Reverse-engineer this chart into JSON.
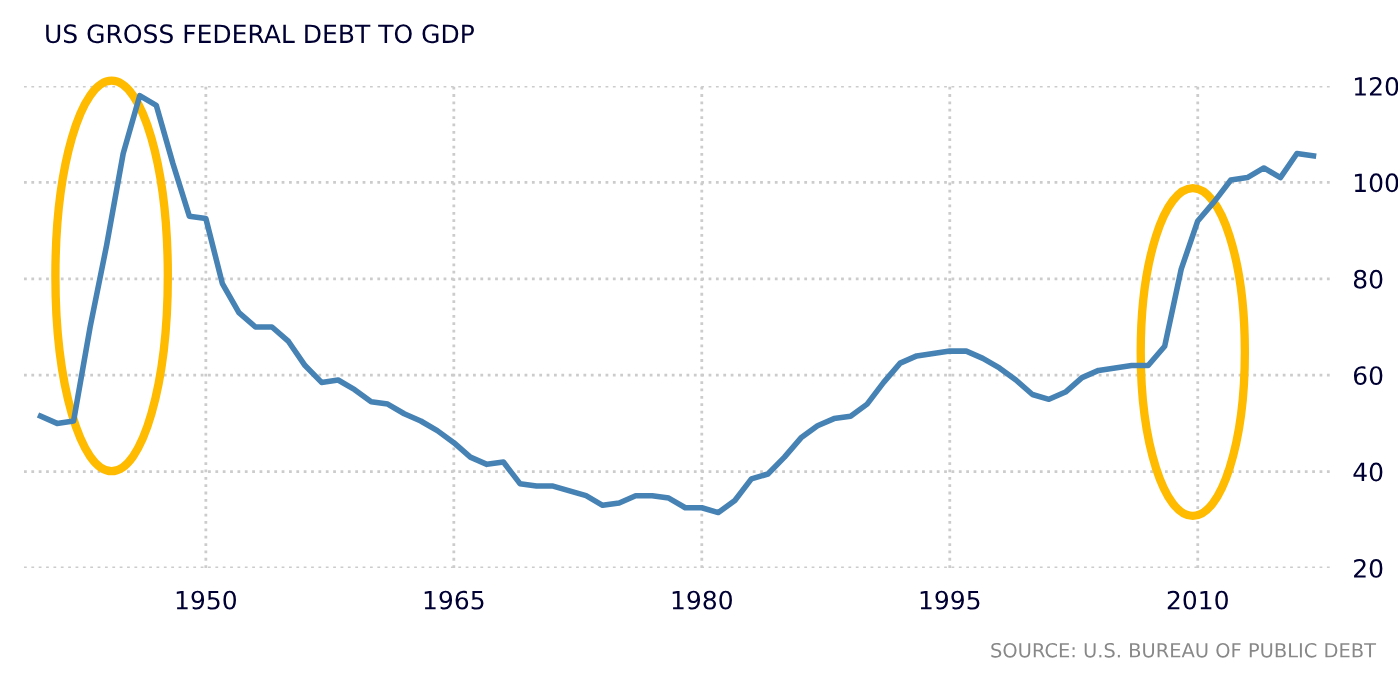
{
  "chart_data": {
    "type": "line",
    "title": "US GROSS FEDERAL DEBT TO GDP",
    "annotations": [
      "SOURCE: U.S. BUREAU OF PUBLIC DEBT"
    ],
    "x": [
      1940,
      1941,
      1942,
      1943,
      1944,
      1945,
      1946,
      1947,
      1948,
      1949,
      1950,
      1951,
      1952,
      1953,
      1954,
      1955,
      1956,
      1957,
      1958,
      1959,
      1960,
      1961,
      1962,
      1963,
      1964,
      1965,
      1966,
      1967,
      1968,
      1969,
      1970,
      1971,
      1972,
      1973,
      1974,
      1975,
      1976,
      1977,
      1978,
      1979,
      1980,
      1981,
      1982,
      1983,
      1984,
      1985,
      1986,
      1987,
      1988,
      1989,
      1990,
      1991,
      1992,
      1993,
      1994,
      1995,
      1996,
      1997,
      1998,
      1999,
      2000,
      2001,
      2002,
      2003,
      2004,
      2005,
      2006,
      2007,
      2008,
      2009,
      2010,
      2011,
      2012,
      2013,
      2014,
      2015,
      2016,
      2017
    ],
    "series": [
      {
        "color": "#4682b4",
        "values": [
          51.5,
          50,
          50.5,
          70,
          87,
          106,
          118,
          116,
          104,
          93,
          92.5,
          79,
          73,
          70,
          70,
          67,
          62,
          58.5,
          59,
          57,
          54.5,
          54,
          52,
          50.5,
          48.5,
          46,
          43,
          41.5,
          42,
          37.5,
          37,
          37,
          36,
          35,
          33,
          33.5,
          35,
          35,
          34.5,
          32.5,
          32.5,
          31.5,
          34,
          38.5,
          39.5,
          43,
          47,
          49.5,
          51,
          51.5,
          54,
          58.5,
          62.5,
          64,
          64.5,
          65,
          65,
          63.5,
          61.5,
          59,
          56,
          55,
          56.5,
          59.5,
          61,
          61.5,
          62,
          62,
          66,
          82,
          92,
          96,
          100.5,
          101,
          103,
          101,
          106,
          105.5
        ]
      }
    ],
    "xlim": [
      1939,
      2018
    ],
    "ylim": [
      20,
      120
    ],
    "xticks": [
      1950,
      1965,
      1980,
      1995,
      2010
    ],
    "yticks": [
      20,
      40,
      60,
      80,
      100,
      120
    ],
    "grid": true,
    "marker": "none",
    "line_style": "solid",
    "legend": false
  }
}
